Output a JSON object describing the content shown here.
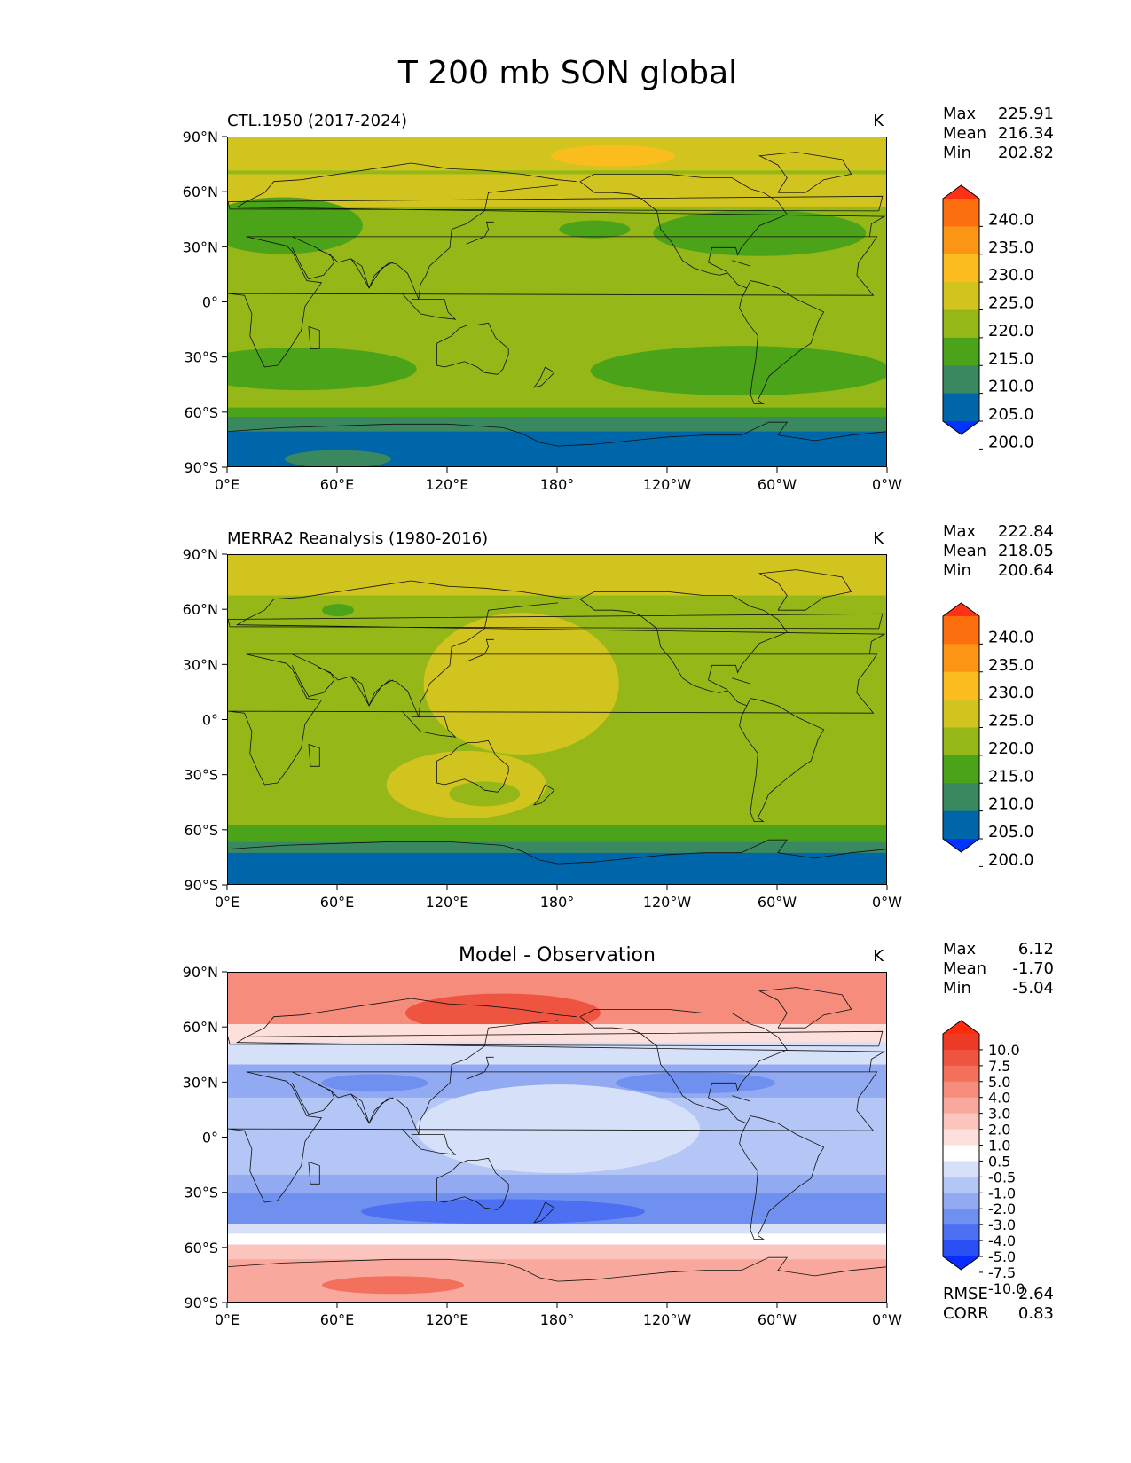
{
  "figure_title": "T 200 mb SON global",
  "units_label": "K",
  "x_tick_labels": [
    "0°E",
    "60°E",
    "120°E",
    "180°",
    "120°W",
    "60°W",
    "0°W"
  ],
  "y_tick_labels": [
    "90°N",
    "60°N",
    "30°N",
    "0°",
    "30°S",
    "60°S",
    "90°S"
  ],
  "panels": [
    {
      "title": "CTL.1950 (2017-2024)",
      "units": "K",
      "stats": [
        {
          "label": "Max",
          "value": "225.91"
        },
        {
          "label": "Mean",
          "value": "216.34"
        },
        {
          "label": "Min",
          "value": "202.82"
        }
      ]
    },
    {
      "title": "MERRA2 Reanalysis (1980-2016)",
      "units": "K",
      "stats": [
        {
          "label": "Max",
          "value": "222.84"
        },
        {
          "label": "Mean",
          "value": "218.05"
        },
        {
          "label": "Min",
          "value": "200.64"
        }
      ]
    },
    {
      "title": "Model - Observation",
      "units": "K",
      "stats": [
        {
          "label": "Max",
          "value": "6.12"
        },
        {
          "label": "Mean",
          "value": "-1.70"
        },
        {
          "label": "Min",
          "value": "-5.04"
        }
      ],
      "extra_stats": [
        {
          "label": "RMSE",
          "value": "2.64"
        },
        {
          "label": "CORR",
          "value": "0.83"
        }
      ]
    }
  ],
  "colorbar_abs": {
    "labels": [
      "240.0",
      "235.0",
      "230.0",
      "225.0",
      "220.0",
      "215.0",
      "210.0",
      "205.0",
      "200.0"
    ],
    "colors": [
      "#0033ff",
      "#0066aa",
      "#3a8860",
      "#4aa318",
      "#95b818",
      "#d2c41e",
      "#fbbd1e",
      "#fd9514",
      "#fd6e0f",
      "#ff3217"
    ]
  },
  "colorbar_diff": {
    "labels": [
      "10.0",
      "7.5",
      "5.0",
      "4.0",
      "3.0",
      "2.0",
      "1.0",
      "0.5",
      "-0.5",
      "-1.0",
      "-2.0",
      "-3.0",
      "-4.0",
      "-5.0",
      "-7.5",
      "-10.0"
    ],
    "colors": [
      "#0a2cff",
      "#2a50f5",
      "#4d6ff2",
      "#7090f0",
      "#92aaf2",
      "#b4c6f5",
      "#d6e0f8",
      "#ffffff",
      "#fde0dc",
      "#fbc4bc",
      "#f8a89c",
      "#f58c7c",
      "#f2705c",
      "#ef5440",
      "#ec3a24",
      "#ff2b0a"
    ]
  },
  "chart_data": [
    {
      "type": "heatmap",
      "title": "CTL.1950 (2017-2024)",
      "units": "K",
      "xlim": [
        0,
        360
      ],
      "ylim": [
        -90,
        90
      ],
      "levels": [
        200,
        205,
        210,
        215,
        220,
        225,
        230,
        235,
        240
      ],
      "stats": {
        "max": 225.91,
        "mean": 216.34,
        "min": 202.82
      },
      "field_bands_approx": [
        {
          "lat_range": [
            75,
            90
          ],
          "value_range": [
            220,
            225
          ]
        },
        {
          "lat_range": [
            55,
            75
          ],
          "value_range": [
            215,
            225
          ]
        },
        {
          "lat_range": [
            25,
            45
          ],
          "value_range": [
            210,
            215
          ]
        },
        {
          "lat_range": [
            -25,
            25
          ],
          "value_range": [
            215,
            220
          ]
        },
        {
          "lat_range": [
            -45,
            -25
          ],
          "value_range": [
            210,
            215
          ]
        },
        {
          "lat_range": [
            -60,
            -45
          ],
          "value_range": [
            215,
            220
          ]
        },
        {
          "lat_range": [
            -75,
            -60
          ],
          "value_range": [
            205,
            215
          ]
        },
        {
          "lat_range": [
            -90,
            -75
          ],
          "value_range": [
            200,
            210
          ]
        }
      ]
    },
    {
      "type": "heatmap",
      "title": "MERRA2 Reanalysis (1980-2016)",
      "units": "K",
      "xlim": [
        0,
        360
      ],
      "ylim": [
        -90,
        90
      ],
      "levels": [
        200,
        205,
        210,
        215,
        220,
        225,
        230,
        235,
        240
      ],
      "stats": {
        "max": 222.84,
        "mean": 218.05,
        "min": 200.64
      },
      "field_bands_approx": [
        {
          "lat_range": [
            65,
            90
          ],
          "value_range": [
            220,
            225
          ]
        },
        {
          "lat_range": [
            40,
            65
          ],
          "value_range": [
            215,
            220
          ]
        },
        {
          "lat_range": [
            -45,
            40
          ],
          "value_range": [
            215,
            225
          ]
        },
        {
          "lat_range": [
            -70,
            -55
          ],
          "value_range": [
            210,
            215
          ]
        },
        {
          "lat_range": [
            -90,
            -70
          ],
          "value_range": [
            200,
            210
          ]
        }
      ]
    },
    {
      "type": "heatmap",
      "title": "Model - Observation",
      "units": "K",
      "xlim": [
        0,
        360
      ],
      "ylim": [
        -90,
        90
      ],
      "levels": [
        -10,
        -7.5,
        -5,
        -4,
        -3,
        -2,
        -1,
        -0.5,
        0.5,
        1,
        2,
        3,
        4,
        5,
        7.5,
        10
      ],
      "stats": {
        "max": 6.12,
        "mean": -1.7,
        "min": -5.04,
        "rmse": 2.64,
        "corr": 0.83
      },
      "field_bands_approx": [
        {
          "lat_range": [
            60,
            90
          ],
          "value_range": [
            2,
            6
          ]
        },
        {
          "lat_range": [
            40,
            60
          ],
          "value_range": [
            -1,
            1
          ]
        },
        {
          "lat_range": [
            -20,
            40
          ],
          "value_range": [
            -4,
            -1
          ]
        },
        {
          "lat_range": [
            -50,
            -20
          ],
          "value_range": [
            -5,
            -2
          ]
        },
        {
          "lat_range": [
            -60,
            -50
          ],
          "value_range": [
            -0.5,
            1
          ]
        },
        {
          "lat_range": [
            -90,
            -60
          ],
          "value_range": [
            1,
            4
          ]
        }
      ]
    }
  ]
}
